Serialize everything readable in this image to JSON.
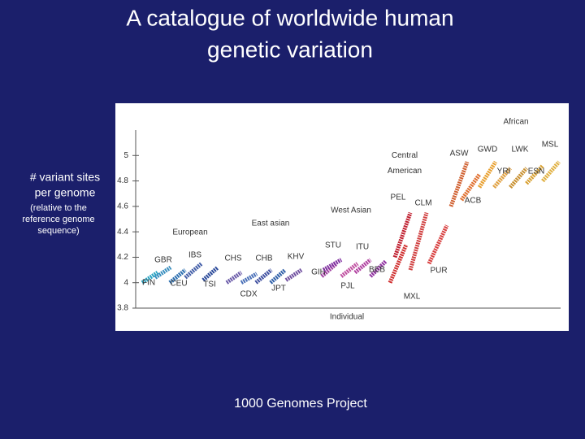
{
  "slide": {
    "title_lines": [
      "A catalogue of worldwide human",
      "genetic variation"
    ],
    "y_label_lines": [
      "# variant sites",
      "per genome"
    ],
    "y_note_lines": [
      "(relative to the",
      "reference genome",
      "sequence)"
    ],
    "footer": "1000 Genomes Project"
  },
  "chart_data": {
    "type": "strip",
    "x_label": "Individual",
    "ylim": [
      3.8,
      5.2
    ],
    "yticks": [
      3.8,
      4,
      4.2,
      4.4,
      4.6,
      4.8,
      5
    ],
    "groups": [
      "European",
      "East asian",
      "West Asian",
      "Central American",
      "African"
    ],
    "populations": [
      {
        "name": "FIN",
        "color": "#29a3c2",
        "min": 4.0,
        "max": 4.08
      },
      {
        "name": "GBR",
        "color": "#3a8fbf",
        "min": 4.04,
        "max": 4.12
      },
      {
        "name": "CEU",
        "color": "#2c6fb0",
        "min": 4.0,
        "max": 4.1
      },
      {
        "name": "IBS",
        "color": "#445fa8",
        "min": 4.04,
        "max": 4.15
      },
      {
        "name": "TSI",
        "color": "#2b4a9a",
        "min": 4.02,
        "max": 4.12
      },
      {
        "name": "CHS",
        "color": "#6a5aa8",
        "min": 4.0,
        "max": 4.08
      },
      {
        "name": "CDX",
        "color": "#4a70b8",
        "min": 4.0,
        "max": 4.07
      },
      {
        "name": "CHB",
        "color": "#4050a0",
        "min": 4.0,
        "max": 4.1
      },
      {
        "name": "JPT",
        "color": "#3060a8",
        "min": 4.0,
        "max": 4.1
      },
      {
        "name": "KHV",
        "color": "#7050a0",
        "min": 4.02,
        "max": 4.1
      },
      {
        "name": "GIH",
        "color": "#a040a0",
        "min": 4.05,
        "max": 4.15
      },
      {
        "name": "STU",
        "color": "#8030a0",
        "min": 4.1,
        "max": 4.18
      },
      {
        "name": "PJL",
        "color": "#c050a0",
        "min": 4.05,
        "max": 4.15
      },
      {
        "name": "ITU",
        "color": "#b040a0",
        "min": 4.08,
        "max": 4.18
      },
      {
        "name": "BEB",
        "color": "#9030a0",
        "min": 4.05,
        "max": 4.17
      },
      {
        "name": "MXL",
        "color": "#d03030",
        "min": 4.0,
        "max": 4.3
      },
      {
        "name": "PEL",
        "color": "#c02030",
        "min": 4.2,
        "max": 4.55
      },
      {
        "name": "CLM",
        "color": "#d04040",
        "min": 4.1,
        "max": 4.55
      },
      {
        "name": "PUR",
        "color": "#d84040",
        "min": 4.15,
        "max": 4.45
      },
      {
        "name": "ASW",
        "color": "#d06030",
        "min": 4.6,
        "max": 4.95
      },
      {
        "name": "ACB",
        "color": "#e07030",
        "min": 4.65,
        "max": 4.85
      },
      {
        "name": "GWD",
        "color": "#e8a030",
        "min": 4.75,
        "max": 4.95
      },
      {
        "name": "YRI",
        "color": "#e0a040",
        "min": 4.75,
        "max": 4.9
      },
      {
        "name": "LWK",
        "color": "#c89030",
        "min": 4.75,
        "max": 4.9
      },
      {
        "name": "ESN",
        "color": "#d8a030",
        "min": 4.78,
        "max": 4.92
      },
      {
        "name": "MSL",
        "color": "#e0b040",
        "min": 4.8,
        "max": 4.95
      }
    ]
  }
}
